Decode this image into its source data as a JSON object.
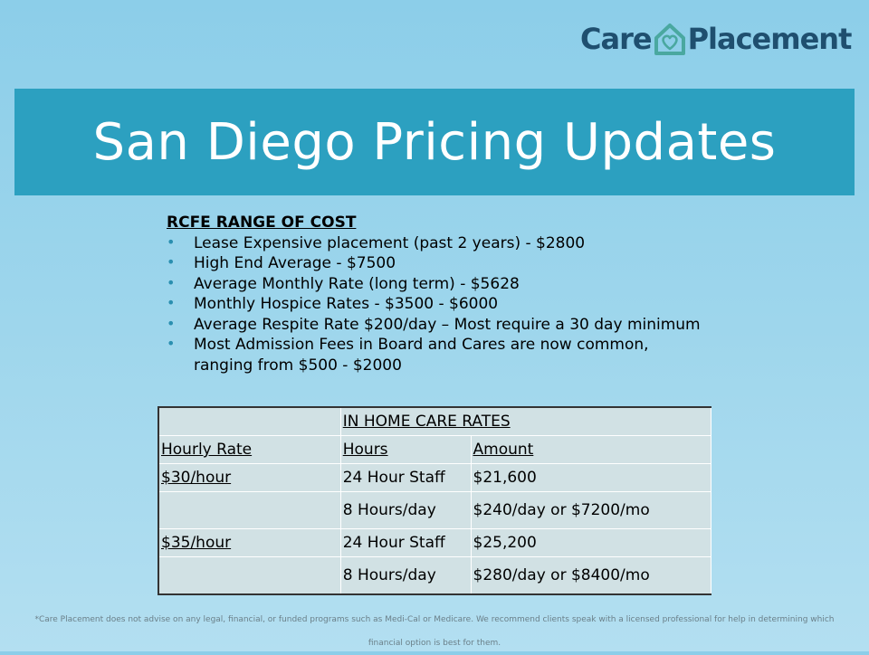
{
  "logo": {
    "left": "Care",
    "right": "Placement",
    "icon": "house-heart-icon"
  },
  "title": "San Diego Pricing Updates",
  "rcfe": {
    "heading": "RCFE RANGE OF COST",
    "items": [
      "Lease Expensive placement (past 2 years) - $2800",
      "High End Average - $7500",
      "Average Monthly Rate (long term) - $5628",
      "Monthly Hospice Rates - $3500 - $6000",
      "Average Respite Rate $200/day – Most require a 30 day minimum",
      "Most Admission Fees in Board and Cares are now common, ranging from $500 - $2000"
    ]
  },
  "in_home": {
    "title": "IN HOME CARE RATES",
    "headers": [
      "Hourly Rate",
      "Hours",
      "Amount"
    ],
    "rows": [
      [
        "$30/hour",
        "24 Hour Staff",
        "$21,600"
      ],
      [
        "",
        "8 Hours/day",
        "$240/day or $7200/mo"
      ],
      [
        "$35/hour",
        "24 Hour Staff",
        "$25,200"
      ],
      [
        "",
        "8 Hours/day",
        "$280/day or $8400/mo"
      ]
    ]
  },
  "disclaimer": "*Care Placement does not advise on any legal, financial, or funded programs such as Medi-Cal or Medicare. We recommend clients speak with a licensed professional for help in determining which financial option is best for them.",
  "colors": {
    "title_band": "#2ca0c0",
    "logo_text": "#1f4f6f",
    "table_bg": "#d1e1e4",
    "bullet": "#2a8fb0"
  }
}
